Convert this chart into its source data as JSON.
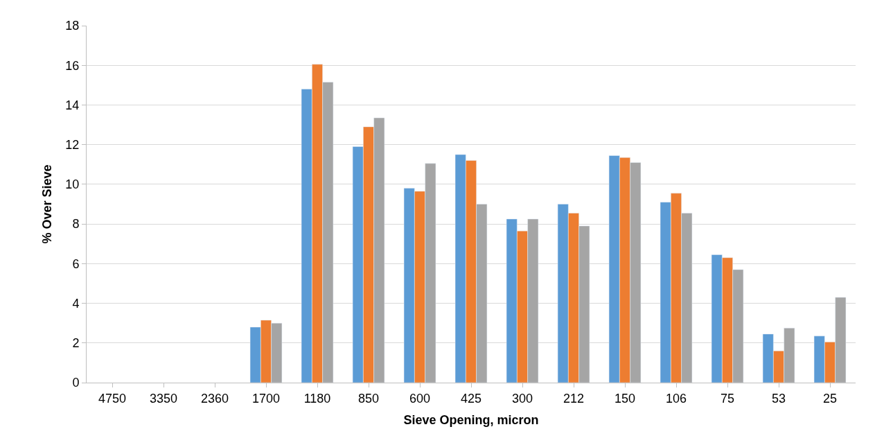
{
  "chart_data": {
    "type": "bar",
    "xlabel": "Sieve Opening, micron",
    "ylabel": "% Over Sieve",
    "categories": [
      "4750",
      "3350",
      "2360",
      "1700",
      "1180",
      "850",
      "600",
      "425",
      "300",
      "212",
      "150",
      "106",
      "75",
      "53",
      "25"
    ],
    "series": [
      {
        "color": "#5b9bd5",
        "values": [
          null,
          null,
          null,
          2.8,
          14.8,
          11.9,
          9.8,
          11.5,
          8.25,
          9.0,
          11.45,
          9.1,
          6.45,
          2.45,
          2.35
        ]
      },
      {
        "color": "#ed7d31",
        "values": [
          null,
          null,
          null,
          3.15,
          16.05,
          12.9,
          9.65,
          11.2,
          7.65,
          8.55,
          11.35,
          9.55,
          6.3,
          1.6,
          2.05
        ]
      },
      {
        "color": "#a5a5a5",
        "values": [
          null,
          null,
          null,
          3.0,
          15.15,
          13.35,
          11.05,
          9.0,
          8.25,
          7.9,
          11.1,
          8.55,
          5.7,
          2.75,
          4.3
        ]
      }
    ],
    "ylim": [
      0,
      18
    ],
    "yticks": [
      0,
      2,
      4,
      6,
      8,
      10,
      12,
      14,
      16,
      18
    ],
    "grid": "y"
  }
}
